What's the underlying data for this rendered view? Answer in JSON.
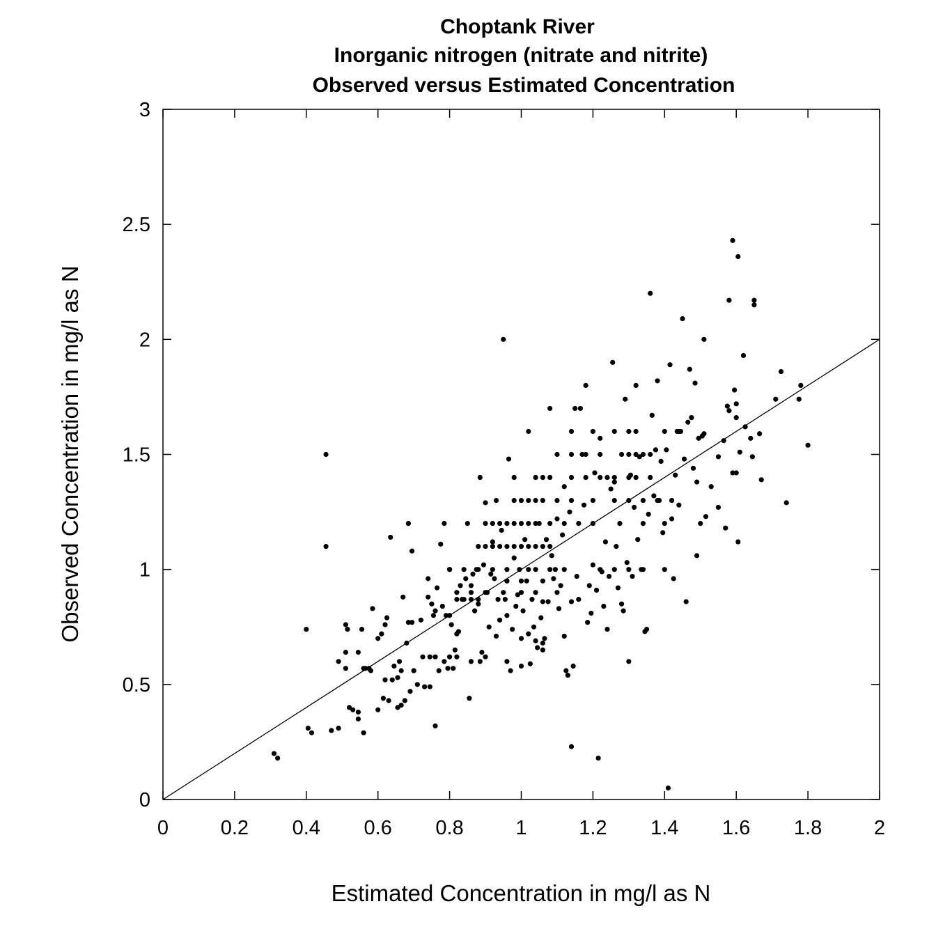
{
  "chart_data": {
    "type": "scatter",
    "title": [
      "Choptank River",
      "Inorganic nitrogen (nitrate and nitrite)",
      "Observed versus Estimated Concentration"
    ],
    "xlabel": "Estimated Concentration in mg/l as N",
    "ylabel": "Observed Concentration in mg/l as N",
    "xlim": [
      0,
      2
    ],
    "ylim": [
      0,
      3
    ],
    "xticks": [
      0,
      0.2,
      0.4,
      0.6,
      0.8,
      1,
      1.2,
      1.4,
      1.6,
      1.8,
      2
    ],
    "xtick_labels": [
      "0",
      "0.2",
      "0.4",
      "0.6",
      "0.8",
      "1",
      "1.2",
      "1.4",
      "1.6",
      "1.8",
      "2"
    ],
    "yticks": [
      0,
      0.5,
      1,
      1.5,
      2,
      2.5,
      3
    ],
    "ytick_labels": [
      "0",
      "0.5",
      "1",
      "1.5",
      "2",
      "2.5",
      "3"
    ],
    "grid": false,
    "reference_line": {
      "x": [
        0,
        2
      ],
      "y": [
        0,
        2
      ]
    },
    "colors": {
      "points": "#000000",
      "line": "#000000",
      "frame": "#000000"
    },
    "points": [
      [
        0.31,
        0.2
      ],
      [
        0.32,
        0.18
      ],
      [
        0.4,
        0.74
      ],
      [
        0.405,
        0.31
      ],
      [
        0.415,
        0.29
      ],
      [
        0.455,
        1.5
      ],
      [
        0.455,
        1.1
      ],
      [
        0.47,
        0.3
      ],
      [
        0.49,
        0.31
      ],
      [
        0.49,
        0.6
      ],
      [
        0.51,
        0.76
      ],
      [
        0.515,
        0.74
      ],
      [
        0.51,
        0.64
      ],
      [
        0.51,
        0.57
      ],
      [
        0.52,
        0.4
      ],
      [
        0.53,
        0.39
      ],
      [
        0.545,
        0.38
      ],
      [
        0.545,
        0.64
      ],
      [
        0.545,
        0.35
      ],
      [
        0.555,
        0.74
      ],
      [
        0.56,
        0.29
      ],
      [
        0.565,
        0.57
      ],
      [
        0.575,
        0.57
      ],
      [
        0.585,
        0.83
      ],
      [
        0.6,
        0.7
      ],
      [
        0.6,
        0.39
      ],
      [
        0.61,
        0.72
      ],
      [
        0.615,
        0.44
      ],
      [
        0.62,
        0.76
      ],
      [
        0.625,
        0.79
      ],
      [
        0.63,
        0.43
      ],
      [
        0.635,
        1.14
      ],
      [
        0.64,
        0.52
      ],
      [
        0.645,
        0.58
      ],
      [
        0.655,
        0.53
      ],
      [
        0.655,
        0.4
      ],
      [
        0.665,
        0.56
      ],
      [
        0.665,
        0.41
      ],
      [
        0.67,
        0.88
      ],
      [
        0.675,
        0.43
      ],
      [
        0.68,
        0.68
      ],
      [
        0.685,
        1.2
      ],
      [
        0.685,
        0.77
      ],
      [
        0.69,
        0.47
      ],
      [
        0.695,
        1.08
      ],
      [
        0.695,
        0.77
      ],
      [
        0.7,
        0.56
      ],
      [
        0.71,
        0.5
      ],
      [
        0.72,
        0.78
      ],
      [
        0.725,
        0.62
      ],
      [
        0.73,
        0.49
      ],
      [
        0.74,
        0.96
      ],
      [
        0.745,
        0.62
      ],
      [
        0.745,
        0.49
      ],
      [
        0.75,
        0.85
      ],
      [
        0.755,
        0.8
      ],
      [
        0.76,
        0.32
      ],
      [
        0.765,
        0.92
      ],
      [
        0.77,
        0.56
      ],
      [
        0.775,
        1.11
      ],
      [
        0.78,
        0.84
      ],
      [
        0.785,
        1.2
      ],
      [
        0.785,
        0.6
      ],
      [
        0.79,
        0.8
      ],
      [
        0.795,
        0.57
      ],
      [
        0.8,
        1.0
      ],
      [
        0.8,
        0.8
      ],
      [
        0.805,
        0.76
      ],
      [
        0.81,
        0.57
      ],
      [
        0.815,
        0.65
      ],
      [
        0.82,
        0.72
      ],
      [
        0.82,
        0.62
      ],
      [
        0.825,
        0.73
      ],
      [
        0.83,
        0.93
      ],
      [
        0.835,
        0.87
      ],
      [
        0.84,
        0.87
      ],
      [
        0.845,
        0.96
      ],
      [
        0.85,
        1.2
      ],
      [
        0.855,
        0.44
      ],
      [
        0.86,
        0.93
      ],
      [
        0.865,
        0.98
      ],
      [
        0.87,
        0.82
      ],
      [
        0.875,
        1.0
      ],
      [
        0.88,
        0.87
      ],
      [
        0.885,
        1.4
      ],
      [
        0.885,
        0.6
      ],
      [
        0.89,
        0.64
      ],
      [
        0.895,
        1.02
      ],
      [
        0.9,
        1.29
      ],
      [
        0.905,
        0.9
      ],
      [
        0.91,
        0.75
      ],
      [
        0.915,
        0.98
      ],
      [
        0.92,
        1.12
      ],
      [
        0.925,
        0.96
      ],
      [
        0.93,
        0.71
      ],
      [
        0.935,
        0.87
      ],
      [
        0.94,
        0.78
      ],
      [
        0.945,
        1.17
      ],
      [
        0.95,
        2.0
      ],
      [
        0.955,
        0.87
      ],
      [
        0.96,
        0.95
      ],
      [
        0.965,
        1.48
      ],
      [
        0.97,
        0.56
      ],
      [
        0.975,
        0.74
      ],
      [
        0.98,
        1.05
      ],
      [
        0.985,
        0.84
      ],
      [
        0.99,
        0.89
      ],
      [
        0.995,
        1.0
      ],
      [
        1.0,
        0.7
      ],
      [
        1.005,
        0.82
      ],
      [
        1.01,
        1.13
      ],
      [
        1.015,
        0.95
      ],
      [
        1.02,
        1.6
      ],
      [
        1.025,
        0.59
      ],
      [
        1.03,
        0.87
      ],
      [
        1.035,
        0.75
      ],
      [
        1.04,
        0.69
      ],
      [
        1.045,
        0.66
      ],
      [
        1.05,
        1.2
      ],
      [
        1.055,
        0.79
      ],
      [
        1.06,
        0.65
      ],
      [
        1.065,
        0.7
      ],
      [
        1.07,
        1.13
      ],
      [
        1.075,
        0.86
      ],
      [
        1.08,
        1.7
      ],
      [
        1.085,
        1.06
      ],
      [
        1.09,
        0.96
      ],
      [
        1.095,
        1.0
      ],
      [
        1.1,
        1.22
      ],
      [
        1.105,
        0.83
      ],
      [
        1.11,
        0.93
      ],
      [
        1.115,
        1.15
      ],
      [
        1.12,
        1.36
      ],
      [
        1.125,
        0.56
      ],
      [
        1.13,
        0.54
      ],
      [
        1.135,
        1.25
      ],
      [
        1.14,
        0.23
      ],
      [
        1.145,
        0.58
      ],
      [
        1.15,
        1.7
      ],
      [
        1.155,
        0.97
      ],
      [
        1.16,
        0.87
      ],
      [
        1.165,
        1.7
      ],
      [
        1.17,
        1.5
      ],
      [
        1.175,
        1.28
      ],
      [
        1.18,
        1.8
      ],
      [
        1.185,
        0.77
      ],
      [
        1.19,
        0.93
      ],
      [
        1.195,
        0.81
      ],
      [
        1.2,
        1.02
      ],
      [
        1.205,
        1.42
      ],
      [
        1.21,
        0.91
      ],
      [
        1.215,
        0.18
      ],
      [
        1.22,
        1.57
      ],
      [
        1.225,
        0.99
      ],
      [
        1.23,
        0.84
      ],
      [
        1.235,
        1.12
      ],
      [
        1.24,
        0.74
      ],
      [
        1.245,
        0.97
      ],
      [
        1.25,
        1.35
      ],
      [
        1.255,
        1.9
      ],
      [
        1.26,
        1.38
      ],
      [
        1.265,
        1.1
      ],
      [
        1.27,
        0.92
      ],
      [
        1.275,
        1.2
      ],
      [
        1.28,
        0.85
      ],
      [
        1.285,
        0.82
      ],
      [
        1.29,
        1.74
      ],
      [
        1.295,
        1.03
      ],
      [
        1.3,
        0.6
      ],
      [
        1.305,
        1.41
      ],
      [
        1.31,
        0.97
      ],
      [
        1.315,
        1.27
      ],
      [
        1.32,
        1.8
      ],
      [
        1.325,
        1.13
      ],
      [
        1.33,
        1.49
      ],
      [
        1.335,
        1.0
      ],
      [
        1.34,
        1.2
      ],
      [
        1.345,
        0.73
      ],
      [
        1.35,
        0.74
      ],
      [
        1.355,
        1.24
      ],
      [
        1.36,
        2.2
      ],
      [
        1.365,
        1.67
      ],
      [
        1.37,
        1.32
      ],
      [
        1.375,
        1.52
      ],
      [
        1.38,
        1.82
      ],
      [
        1.385,
        1.3
      ],
      [
        1.39,
        1.47
      ],
      [
        1.395,
        1.16
      ],
      [
        1.4,
        1.2
      ],
      [
        1.405,
        1.52
      ],
      [
        1.41,
        0.05
      ],
      [
        1.415,
        1.89
      ],
      [
        1.42,
        1.22
      ],
      [
        1.425,
        0.96
      ],
      [
        1.43,
        1.41
      ],
      [
        1.435,
        1.6
      ],
      [
        1.44,
        1.28
      ],
      [
        1.445,
        1.6
      ],
      [
        1.45,
        2.09
      ],
      [
        1.455,
        1.48
      ],
      [
        1.46,
        0.86
      ],
      [
        1.465,
        1.64
      ],
      [
        1.47,
        1.87
      ],
      [
        1.475,
        1.66
      ],
      [
        1.48,
        1.44
      ],
      [
        1.485,
        1.81
      ],
      [
        1.49,
        1.06
      ],
      [
        1.495,
        1.57
      ],
      [
        1.5,
        1.2
      ],
      [
        1.505,
        1.58
      ],
      [
        1.51,
        2.0
      ],
      [
        1.515,
        1.23
      ],
      [
        1.53,
        1.36
      ],
      [
        1.55,
        1.27
      ],
      [
        1.565,
        1.56
      ],
      [
        1.57,
        1.18
      ],
      [
        1.575,
        1.71
      ],
      [
        1.58,
        2.17
      ],
      [
        1.59,
        2.43
      ],
      [
        1.595,
        1.78
      ],
      [
        1.6,
        1.72
      ],
      [
        1.6,
        1.66
      ],
      [
        1.605,
        2.36
      ],
      [
        1.605,
        1.12
      ],
      [
        1.61,
        1.51
      ],
      [
        1.62,
        1.93
      ],
      [
        1.625,
        1.62
      ],
      [
        1.64,
        1.57
      ],
      [
        1.645,
        1.49
      ],
      [
        1.65,
        2.17
      ],
      [
        1.65,
        2.15
      ],
      [
        1.665,
        1.59
      ],
      [
        1.67,
        1.39
      ],
      [
        1.71,
        1.74
      ],
      [
        1.725,
        1.86
      ],
      [
        1.74,
        1.29
      ],
      [
        1.775,
        1.74
      ],
      [
        1.78,
        1.8
      ],
      [
        1.8,
        1.54
      ],
      [
        1.59,
        1.42
      ],
      [
        1.6,
        1.42
      ],
      [
        1.58,
        1.69
      ],
      [
        1.55,
        1.49
      ],
      [
        1.51,
        1.59
      ],
      [
        1.49,
        1.38
      ],
      [
        0.88,
        1.1
      ],
      [
        0.9,
        1.1
      ],
      [
        0.92,
        1.1
      ],
      [
        0.94,
        1.1
      ],
      [
        0.96,
        1.1
      ],
      [
        0.98,
        1.1
      ],
      [
        1.0,
        1.1
      ],
      [
        1.02,
        1.1
      ],
      [
        1.04,
        1.1
      ],
      [
        1.06,
        1.1
      ],
      [
        1.08,
        1.1
      ],
      [
        0.9,
        1.2
      ],
      [
        0.92,
        1.2
      ],
      [
        0.94,
        1.2
      ],
      [
        0.96,
        1.2
      ],
      [
        0.98,
        1.2
      ],
      [
        1.0,
        1.2
      ],
      [
        1.02,
        1.2
      ],
      [
        1.04,
        1.2
      ],
      [
        1.08,
        1.2
      ],
      [
        1.12,
        1.2
      ],
      [
        1.16,
        1.2
      ],
      [
        1.2,
        1.2
      ],
      [
        0.93,
        1.3
      ],
      [
        0.98,
        1.3
      ],
      [
        1.0,
        1.3
      ],
      [
        1.02,
        1.3
      ],
      [
        1.04,
        1.3
      ],
      [
        1.06,
        1.3
      ],
      [
        1.1,
        1.3
      ],
      [
        1.14,
        1.3
      ],
      [
        1.2,
        1.3
      ],
      [
        1.26,
        1.3
      ],
      [
        1.3,
        1.3
      ],
      [
        1.34,
        1.3
      ],
      [
        1.38,
        1.3
      ],
      [
        1.42,
        1.3
      ],
      [
        0.98,
        1.4
      ],
      [
        1.04,
        1.4
      ],
      [
        1.06,
        1.4
      ],
      [
        1.08,
        1.4
      ],
      [
        1.14,
        1.4
      ],
      [
        1.18,
        1.4
      ],
      [
        1.22,
        1.4
      ],
      [
        1.24,
        1.4
      ],
      [
        1.26,
        1.4
      ],
      [
        1.3,
        1.4
      ],
      [
        1.32,
        1.4
      ],
      [
        1.36,
        1.4
      ],
      [
        1.1,
        1.5
      ],
      [
        1.14,
        1.5
      ],
      [
        1.18,
        1.5
      ],
      [
        1.22,
        1.5
      ],
      [
        1.28,
        1.5
      ],
      [
        1.3,
        1.5
      ],
      [
        1.32,
        1.5
      ],
      [
        1.34,
        1.5
      ],
      [
        1.36,
        1.5
      ],
      [
        1.14,
        1.6
      ],
      [
        1.2,
        1.6
      ],
      [
        1.26,
        1.6
      ],
      [
        1.3,
        1.6
      ],
      [
        1.32,
        1.6
      ],
      [
        1.4,
        1.6
      ],
      [
        1.44,
        1.6
      ],
      [
        0.8,
        1.0
      ],
      [
        0.84,
        1.0
      ],
      [
        0.88,
        1.0
      ],
      [
        0.92,
        1.0
      ],
      [
        0.96,
        1.0
      ],
      [
        1.02,
        1.0
      ],
      [
        1.04,
        1.0
      ],
      [
        1.08,
        1.0
      ],
      [
        1.12,
        1.0
      ],
      [
        1.22,
        1.0
      ],
      [
        1.26,
        1.0
      ],
      [
        1.3,
        1.0
      ],
      [
        1.34,
        1.0
      ],
      [
        1.4,
        1.0
      ],
      [
        0.82,
        0.9
      ],
      [
        0.86,
        0.9
      ],
      [
        0.9,
        0.9
      ],
      [
        0.95,
        0.9
      ],
      [
        1.0,
        0.9
      ],
      [
        1.04,
        0.9
      ],
      [
        1.1,
        0.9
      ],
      [
        1.0,
        0.95
      ],
      [
        0.96,
        0.95
      ],
      [
        1.06,
        0.95
      ],
      [
        0.82,
        0.87
      ],
      [
        0.86,
        0.87
      ],
      [
        0.88,
        0.85
      ],
      [
        0.96,
        0.8
      ],
      [
        1.06,
        0.86
      ],
      [
        1.14,
        0.86
      ],
      [
        0.76,
        0.82
      ],
      [
        0.74,
        0.88
      ],
      [
        1.12,
        0.71
      ],
      [
        1.06,
        0.68
      ],
      [
        1.02,
        0.72
      ],
      [
        0.96,
        0.6
      ],
      [
        1.0,
        0.58
      ],
      [
        0.9,
        0.62
      ],
      [
        0.86,
        0.6
      ],
      [
        0.8,
        0.62
      ],
      [
        0.76,
        0.62
      ],
      [
        0.7,
        0.56
      ],
      [
        0.66,
        0.6
      ],
      [
        0.62,
        0.52
      ],
      [
        0.58,
        0.56
      ],
      [
        0.56,
        0.57
      ]
    ]
  }
}
